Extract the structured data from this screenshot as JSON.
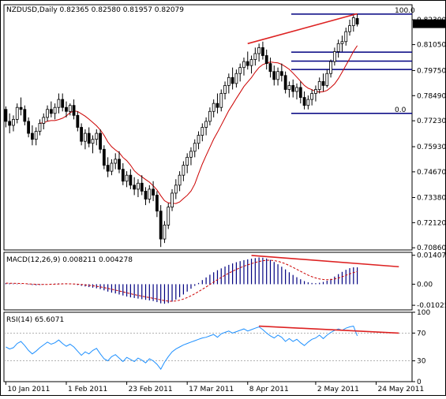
{
  "chart_data": [
    {
      "type": "candlestick",
      "header": "NZDUSD,Daily  0.82365 0.82580 0.81957 0.82079",
      "symbol": "NZDUSD",
      "timeframe": "Daily",
      "ohlc_readout": {
        "open": 0.82365,
        "high": 0.8258,
        "low": 0.81957,
        "close": 0.82079
      },
      "last_price_label": "0.82079",
      "ylim": [
        0.7075,
        0.8305
      ],
      "yticks": [
        "0.82300",
        "0.81050",
        "0.79750",
        "0.78490",
        "0.77230",
        "0.75930",
        "0.74670",
        "0.73380",
        "0.72120",
        "0.70860"
      ],
      "x_tick_labels": [
        {
          "label": "10 Jan 2011",
          "bar": 0
        },
        {
          "label": "1 Feb 2011",
          "bar": 16
        },
        {
          "label": "23 Feb 2011",
          "bar": 32
        },
        {
          "label": "17 Mar 2011",
          "bar": 48
        },
        {
          "label": "8 Apr 2011",
          "bar": 64
        },
        {
          "label": "2 May 2011",
          "bar": 82
        },
        {
          "label": "24 May 2011",
          "bar": 98
        }
      ],
      "bars": [
        [
          0.778,
          0.7795,
          0.769,
          0.772
        ],
        [
          0.772,
          0.776,
          0.766,
          0.77
        ],
        [
          0.77,
          0.775,
          0.767,
          0.773
        ],
        [
          0.773,
          0.781,
          0.771,
          0.779
        ],
        [
          0.779,
          0.784,
          0.775,
          0.778
        ],
        [
          0.778,
          0.78,
          0.77,
          0.772
        ],
        [
          0.772,
          0.774,
          0.764,
          0.766
        ],
        [
          0.766,
          0.77,
          0.76,
          0.763
        ],
        [
          0.763,
          0.769,
          0.76,
          0.767
        ],
        [
          0.767,
          0.773,
          0.765,
          0.771
        ],
        [
          0.771,
          0.776,
          0.768,
          0.774
        ],
        [
          0.774,
          0.78,
          0.772,
          0.778
        ],
        [
          0.778,
          0.782,
          0.774,
          0.776
        ],
        [
          0.776,
          0.781,
          0.773,
          0.779
        ],
        [
          0.779,
          0.786,
          0.776,
          0.783
        ],
        [
          0.783,
          0.786,
          0.777,
          0.779
        ],
        [
          0.779,
          0.782,
          0.774,
          0.777
        ],
        [
          0.777,
          0.781,
          0.775,
          0.78
        ],
        [
          0.78,
          0.783,
          0.773,
          0.775
        ],
        [
          0.775,
          0.777,
          0.767,
          0.769
        ],
        [
          0.769,
          0.771,
          0.76,
          0.762
        ],
        [
          0.762,
          0.768,
          0.758,
          0.766
        ],
        [
          0.766,
          0.769,
          0.759,
          0.761
        ],
        [
          0.761,
          0.765,
          0.756,
          0.763
        ],
        [
          0.763,
          0.768,
          0.76,
          0.766
        ],
        [
          0.766,
          0.768,
          0.756,
          0.758
        ],
        [
          0.758,
          0.76,
          0.748,
          0.75
        ],
        [
          0.75,
          0.754,
          0.744,
          0.747
        ],
        [
          0.747,
          0.753,
          0.745,
          0.751
        ],
        [
          0.751,
          0.756,
          0.748,
          0.753
        ],
        [
          0.753,
          0.757,
          0.746,
          0.748
        ],
        [
          0.748,
          0.751,
          0.74,
          0.742
        ],
        [
          0.742,
          0.747,
          0.739,
          0.745
        ],
        [
          0.745,
          0.748,
          0.738,
          0.74
        ],
        [
          0.74,
          0.744,
          0.735,
          0.738
        ],
        [
          0.738,
          0.743,
          0.734,
          0.741
        ],
        [
          0.741,
          0.745,
          0.735,
          0.737
        ],
        [
          0.737,
          0.739,
          0.73,
          0.733
        ],
        [
          0.733,
          0.74,
          0.731,
          0.738
        ],
        [
          0.738,
          0.742,
          0.732,
          0.735
        ],
        [
          0.735,
          0.737,
          0.724,
          0.727
        ],
        [
          0.727,
          0.73,
          0.709,
          0.713
        ],
        [
          0.713,
          0.722,
          0.711,
          0.72
        ],
        [
          0.72,
          0.731,
          0.718,
          0.729
        ],
        [
          0.729,
          0.738,
          0.727,
          0.736
        ],
        [
          0.736,
          0.743,
          0.733,
          0.74
        ],
        [
          0.74,
          0.747,
          0.737,
          0.745
        ],
        [
          0.745,
          0.752,
          0.742,
          0.75
        ],
        [
          0.75,
          0.756,
          0.746,
          0.754
        ],
        [
          0.754,
          0.759,
          0.75,
          0.757
        ],
        [
          0.757,
          0.763,
          0.754,
          0.761
        ],
        [
          0.761,
          0.767,
          0.758,
          0.765
        ],
        [
          0.765,
          0.771,
          0.762,
          0.769
        ],
        [
          0.769,
          0.774,
          0.765,
          0.772
        ],
        [
          0.772,
          0.779,
          0.77,
          0.777
        ],
        [
          0.777,
          0.783,
          0.774,
          0.781
        ],
        [
          0.781,
          0.786,
          0.776,
          0.779
        ],
        [
          0.779,
          0.788,
          0.777,
          0.786
        ],
        [
          0.786,
          0.792,
          0.783,
          0.79
        ],
        [
          0.79,
          0.796,
          0.786,
          0.794
        ],
        [
          0.794,
          0.799,
          0.788,
          0.791
        ],
        [
          0.791,
          0.798,
          0.789,
          0.796
        ],
        [
          0.796,
          0.801,
          0.792,
          0.799
        ],
        [
          0.799,
          0.804,
          0.795,
          0.802
        ],
        [
          0.802,
          0.807,
          0.798,
          0.8
        ],
        [
          0.8,
          0.805,
          0.796,
          0.803
        ],
        [
          0.803,
          0.809,
          0.8,
          0.806
        ],
        [
          0.806,
          0.811,
          0.802,
          0.809
        ],
        [
          0.809,
          0.812,
          0.803,
          0.805
        ],
        [
          0.805,
          0.808,
          0.798,
          0.801
        ],
        [
          0.801,
          0.804,
          0.794,
          0.797
        ],
        [
          0.797,
          0.8,
          0.79,
          0.793
        ],
        [
          0.793,
          0.799,
          0.79,
          0.797
        ],
        [
          0.797,
          0.801,
          0.792,
          0.795
        ],
        [
          0.795,
          0.797,
          0.786,
          0.788
        ],
        [
          0.788,
          0.792,
          0.784,
          0.79
        ],
        [
          0.79,
          0.793,
          0.784,
          0.787
        ],
        [
          0.787,
          0.791,
          0.783,
          0.789
        ],
        [
          0.789,
          0.792,
          0.781,
          0.784
        ],
        [
          0.784,
          0.787,
          0.778,
          0.78
        ],
        [
          0.78,
          0.785,
          0.778,
          0.783
        ],
        [
          0.783,
          0.788,
          0.78,
          0.786
        ],
        [
          0.786,
          0.79,
          0.782,
          0.788
        ],
        [
          0.788,
          0.794,
          0.786,
          0.792
        ],
        [
          0.792,
          0.796,
          0.787,
          0.79
        ],
        [
          0.79,
          0.798,
          0.789,
          0.796
        ],
        [
          0.796,
          0.803,
          0.794,
          0.802
        ],
        [
          0.802,
          0.809,
          0.8,
          0.807
        ],
        [
          0.807,
          0.813,
          0.804,
          0.811
        ],
        [
          0.811,
          0.815,
          0.807,
          0.812
        ],
        [
          0.812,
          0.819,
          0.81,
          0.817
        ],
        [
          0.817,
          0.823,
          0.815,
          0.82
        ],
        [
          0.82,
          0.826,
          0.817,
          0.824
        ],
        [
          0.8236,
          0.8258,
          0.8196,
          0.8208
        ]
      ],
      "overlays": [
        "moving-average",
        "fibonacci-retracement",
        "trendline"
      ],
      "fibonacci": {
        "levels": [
          {
            "label": "100.0",
            "price": 0.8258
          },
          {
            "label": "",
            "price": 0.8067
          },
          {
            "label": "",
            "price": 0.8022
          },
          {
            "label": "",
            "price": 0.798
          },
          {
            "label": "0.0",
            "price": 0.776
          }
        ],
        "color": "#000080"
      },
      "trendline": {
        "from": {
          "bar": 64,
          "price": 0.811
        },
        "to": {
          "bar": 93,
          "price": 0.826
        },
        "color": "#dd2222"
      },
      "ma_color": "#cc0000",
      "candle_color": "#000000"
    },
    {
      "type": "histogram",
      "header": "MACD(12,26,9) 0.008211 0.004278",
      "indicator": "MACD(12,26,9)",
      "values_readout": [
        0.008211,
        0.004278
      ],
      "ylim": [
        -0.0125,
        0.0155
      ],
      "yticks": [
        "0.014072",
        "0.00",
        "-0.01025"
      ],
      "histogram": [
        0.0005,
        0.0004,
        0.0003,
        0.0002,
        0.0001,
        0.0,
        -0.0002,
        -0.0004,
        -0.0005,
        -0.0004,
        -0.0002,
        0.0,
        0.0002,
        0.0003,
        0.0004,
        0.0004,
        0.0003,
        0.0001,
        -0.0001,
        -0.0004,
        -0.0008,
        -0.0011,
        -0.0014,
        -0.0017,
        -0.002,
        -0.0024,
        -0.003,
        -0.0036,
        -0.0041,
        -0.0045,
        -0.005,
        -0.0055,
        -0.006,
        -0.0064,
        -0.0067,
        -0.007,
        -0.0073,
        -0.0076,
        -0.0079,
        -0.0082,
        -0.0087,
        -0.0093,
        -0.0095,
        -0.0092,
        -0.0085,
        -0.0075,
        -0.0063,
        -0.005,
        -0.0036,
        -0.0022,
        -0.0008,
        0.0006,
        0.002,
        0.0033,
        0.0046,
        0.0058,
        0.0068,
        0.0077,
        0.0086,
        0.0094,
        0.0101,
        0.0107,
        0.0112,
        0.0117,
        0.0121,
        0.0124,
        0.0127,
        0.013,
        0.0129,
        0.0125,
        0.0118,
        0.0108,
        0.0097,
        0.0085,
        0.0072,
        0.0058,
        0.0045,
        0.0034,
        0.0024,
        0.0015,
        0.0009,
        0.0006,
        0.0005,
        0.0007,
        0.0011,
        0.0017,
        0.0026,
        0.0037,
        0.0049,
        0.006,
        0.007,
        0.0078,
        0.0082,
        0.0082
      ],
      "signal_color": "#cc0000",
      "bar_color": "#000080",
      "divergence_line": {
        "from": {
          "bar": 65,
          "value": 0.014
        },
        "to": {
          "bar": 104,
          "value": 0.0085
        },
        "color": "#dd2222"
      }
    },
    {
      "type": "line",
      "header": "RSI(14) 65.6071",
      "indicator": "RSI(14)",
      "value_readout": 65.6071,
      "ylim": [
        0,
        100
      ],
      "yticks": [
        "100",
        "70",
        "30",
        "0"
      ],
      "levels": [
        70,
        30
      ],
      "values": [
        50,
        47,
        49,
        55,
        58,
        52,
        45,
        40,
        44,
        49,
        53,
        57,
        54,
        56,
        60,
        55,
        51,
        54,
        50,
        44,
        38,
        43,
        40,
        45,
        48,
        40,
        33,
        30,
        36,
        39,
        34,
        29,
        35,
        32,
        29,
        34,
        31,
        27,
        33,
        30,
        25,
        18,
        28,
        36,
        43,
        47,
        50,
        53,
        55,
        57,
        59,
        61,
        63,
        64,
        66,
        68,
        64,
        69,
        71,
        73,
        70,
        72,
        74,
        76,
        73,
        75,
        77,
        79,
        75,
        70,
        66,
        63,
        67,
        64,
        58,
        62,
        58,
        61,
        56,
        52,
        57,
        61,
        63,
        67,
        62,
        67,
        71,
        74,
        76,
        74,
        77,
        79,
        80,
        66
      ],
      "line_color": "#1e90ff",
      "divergence_line": {
        "from": {
          "bar": 67,
          "value": 80
        },
        "to": {
          "bar": 104,
          "value": 70
        },
        "color": "#dd2222"
      }
    }
  ]
}
